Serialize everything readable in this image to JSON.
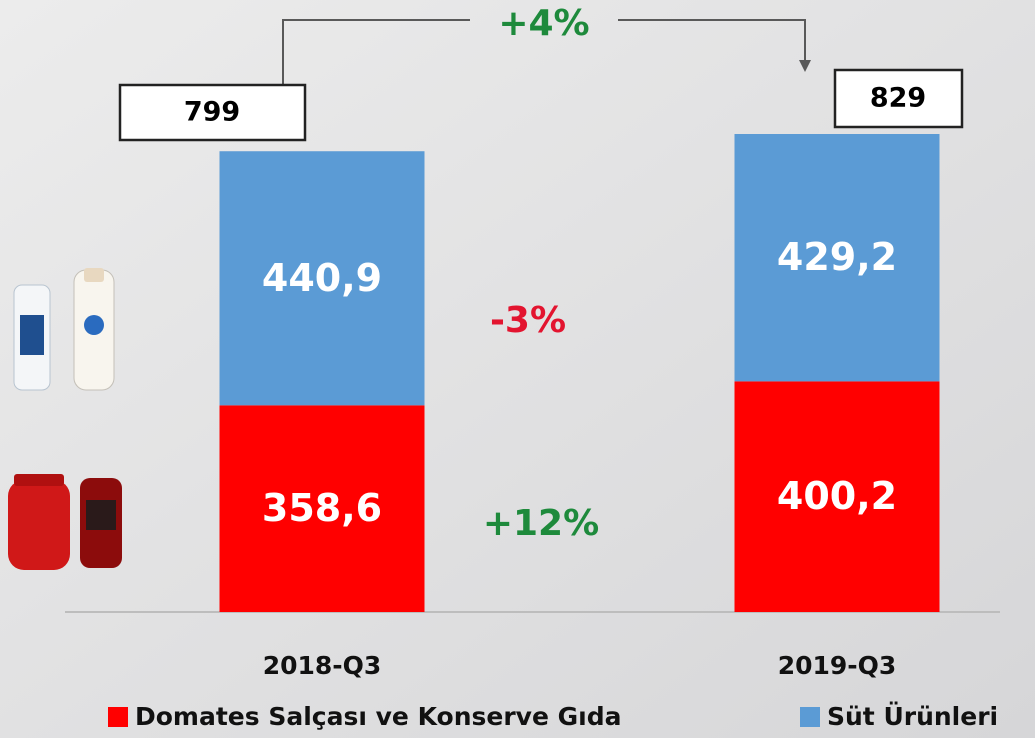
{
  "chart_data": {
    "type": "stacked_bar",
    "categories": [
      "2018-Q3",
      "2019-Q3"
    ],
    "series": [
      {
        "name": "Domates Salçası ve Konserve Gıda",
        "color": "#ff0000",
        "values": [
          358.6,
          400.2
        ],
        "value_labels": [
          "358,6",
          "400,2"
        ]
      },
      {
        "name": "Süt Ürünleri",
        "color": "#5b9bd5",
        "values": [
          440.9,
          429.2
        ],
        "value_labels": [
          "440,9",
          "429,2"
        ]
      }
    ],
    "totals": [
      799,
      829
    ],
    "annotations": [
      {
        "text": "+4%",
        "color": "#1e8a3c"
      },
      {
        "text": "-3%",
        "color": "#e3142f"
      },
      {
        "text": "+12%",
        "color": "#1e8a3c"
      }
    ]
  }
}
